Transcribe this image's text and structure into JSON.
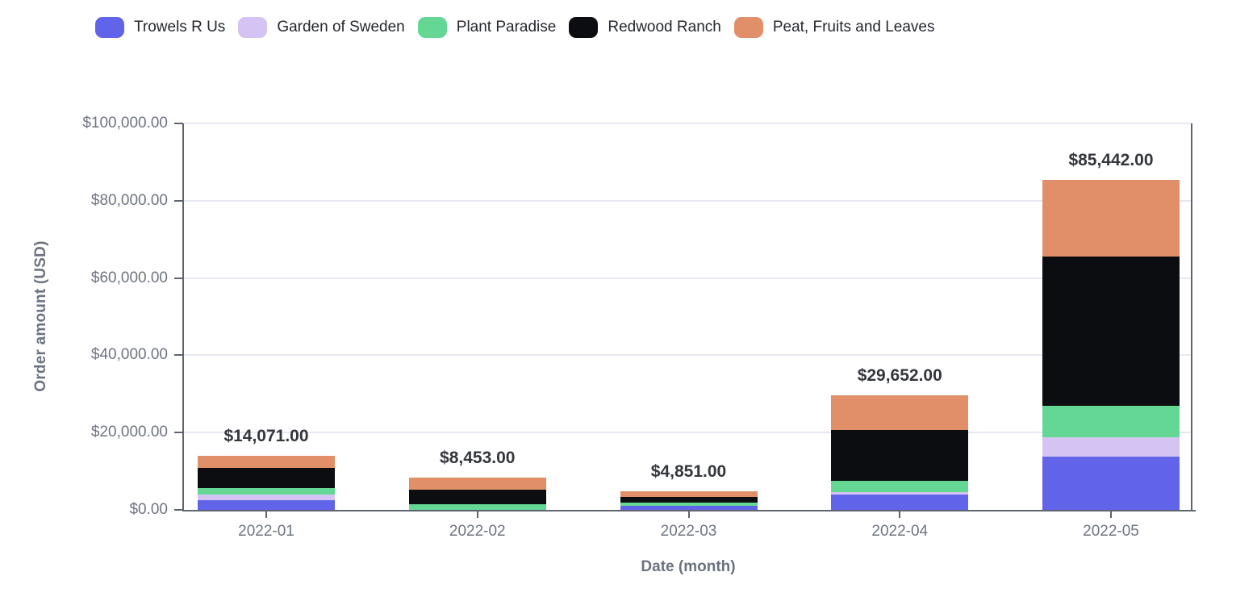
{
  "theme": {
    "background": "#ffffff",
    "grid_color": "#e7e8f1",
    "axis_color": "#5f646e",
    "tick_label_color": "#6e7480",
    "axis_title_color": "#6b7280",
    "total_label_color": "#33363c",
    "legend_text_color": "#24272e"
  },
  "chart_data": {
    "type": "bar",
    "stacked": true,
    "xlabel": "Date (month)",
    "ylabel": "Order amount (USD)",
    "categories": [
      "2022-01",
      "2022-02",
      "2022-03",
      "2022-04",
      "2022-05"
    ],
    "series": [
      {
        "name": "Trowels R Us",
        "color": "#6164e8",
        "values": [
          2450,
          0,
          1040,
          4060,
          13880
        ]
      },
      {
        "name": "Garden of Sweden",
        "color": "#d5c4f3",
        "values": [
          1600,
          0,
          0,
          480,
          4990
        ]
      },
      {
        "name": "Plant Paradise",
        "color": "#65d795",
        "values": [
          1520,
          1400,
          930,
          2930,
          8110
        ]
      },
      {
        "name": "Redwood Ranch",
        "color": "#0c0d10",
        "values": [
          5300,
          3800,
          1310,
          13240,
          38490
        ]
      },
      {
        "name": "Peat, Fruits and Leaves",
        "color": "#e08f68",
        "values": [
          3201,
          3253,
          1571,
          8942,
          19972
        ]
      }
    ],
    "totals": [
      14071,
      8453,
      4851,
      29652,
      85442
    ],
    "total_labels": [
      "$14,071.00",
      "$8,453.00",
      "$4,851.00",
      "$29,652.00",
      "$85,442.00"
    ],
    "y_ticks": [
      {
        "value": 0,
        "label": "$0.00"
      },
      {
        "value": 20000,
        "label": "$20,000.00"
      },
      {
        "value": 40000,
        "label": "$40,000.00"
      },
      {
        "value": 60000,
        "label": "$60,000.00"
      },
      {
        "value": 80000,
        "label": "$80,000.00"
      },
      {
        "value": 100000,
        "label": "$100,000.00"
      }
    ],
    "ylim": [
      0,
      100000
    ],
    "grid": true,
    "legend_position": "top"
  }
}
